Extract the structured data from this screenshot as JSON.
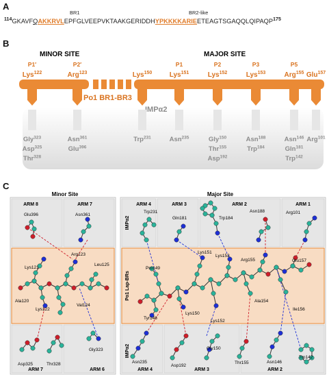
{
  "panelA": {
    "letter": "A",
    "seq_start_num": "114",
    "seq_end_num": "175",
    "seq_pre": "GKAVF",
    "seq_q": "Q",
    "seq_br1": "AKKRVL",
    "seq_mid": "EPFGLVEEPVKTAAKGERIDDH",
    "seq_br2": "YPKKKKARIE",
    "seq_post": "ETEAGTSGAQQLQIPAQP",
    "br1_label": "BR1",
    "br2_label": "BR2-like"
  },
  "panelB": {
    "letter": "B",
    "minor_title": "MINOR SITE",
    "major_title": "MAJOR SITE",
    "bar_label": "Po1 BR1-BR3",
    "impa_label": "IMPα2",
    "positions": [
      "P1′",
      "P2′",
      "P1",
      "P2",
      "P3",
      "P5"
    ],
    "residues_top": [
      {
        "name": "Lys",
        "num": "122"
      },
      {
        "name": "Arg",
        "num": "123"
      },
      {
        "name": "Lys",
        "num": "150"
      },
      {
        "name": "Lys",
        "num": "151"
      },
      {
        "name": "Lys",
        "num": "152"
      },
      {
        "name": "Lys",
        "num": "153"
      },
      {
        "name": "Arg",
        "num": "155"
      },
      {
        "name": "Glu",
        "num": "157"
      }
    ],
    "impa_residues": [
      [
        "Gly323",
        "Asp325",
        "Thr328"
      ],
      [
        "Asn361",
        "Glu396"
      ],
      [
        "Trp231"
      ],
      [
        "Asn235"
      ],
      [
        "Gly150",
        "Thr155",
        "Asp192"
      ],
      [
        "Asn188",
        "Trp184"
      ],
      [
        "Asn146",
        "Gln181",
        "Trp142"
      ],
      [
        "Arg101"
      ]
    ]
  },
  "panelC": {
    "letter": "C",
    "minor_site": "Minor Site",
    "major_site": "Major Site",
    "side_top": "IMPα2",
    "side_mid": "Po1 Lap-BRs",
    "side_bot": "IMPα2",
    "top_arms": [
      "ARM 8",
      "ARM 7",
      "ARM 4",
      "ARM 3",
      "ARM 2",
      "ARM 1"
    ],
    "bottom_arms": [
      "ARM 7",
      "ARM 6",
      "ARM 4",
      "ARM 3",
      "ARM 2"
    ],
    "top_residues": [
      "Glu396",
      "Asn361",
      "Trp231",
      "Gln181",
      "Trp184",
      "Asn188",
      "Arg101"
    ],
    "middle_residues": [
      "Lys121",
      "Arg123",
      "Leu125",
      "Ala120",
      "Val124",
      "Lys122",
      "Pro149",
      "Lys151",
      "Lys153",
      "Arg155",
      "Glu157",
      "Ala154",
      "Ile156",
      "Lys150",
      "Lys152",
      "Tyr148"
    ],
    "bottom_residues": [
      "Asp325",
      "Thr328",
      "Gly323",
      "Asn235",
      "Asp192",
      "Gly150",
      "Thr155",
      "Asn146",
      "Trp142"
    ]
  },
  "colors": {
    "orange": "#ea8a35",
    "orange_light": "#f8dcc3",
    "orange_text": "#d9731f",
    "gray_box": "#dcdcdc",
    "gray_dark": "#8c8c8c",
    "teal": "#2ab39a",
    "blue": "#1d2fd6",
    "red": "#cf1e2a"
  }
}
